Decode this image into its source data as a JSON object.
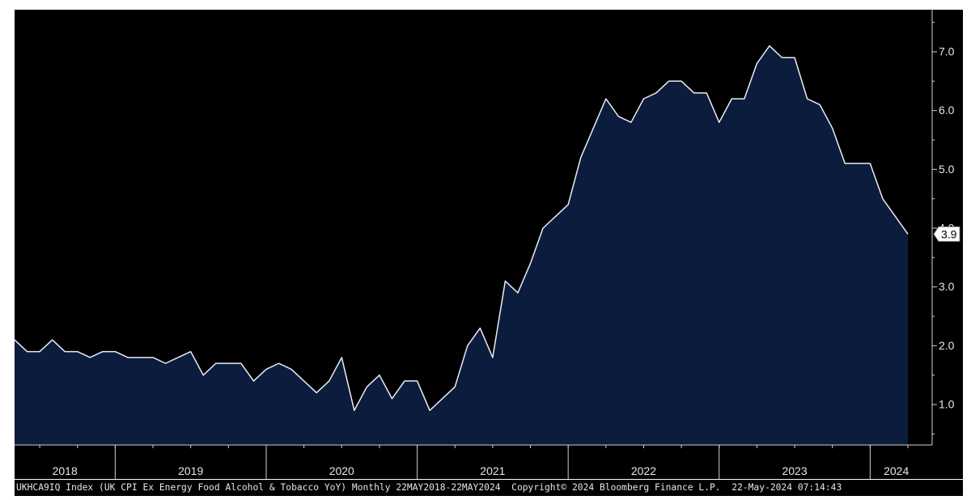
{
  "chart_data": {
    "type": "area",
    "x": [
      "2018-05",
      "2018-06",
      "2018-07",
      "2018-08",
      "2018-09",
      "2018-10",
      "2018-11",
      "2018-12",
      "2019-01",
      "2019-02",
      "2019-03",
      "2019-04",
      "2019-05",
      "2019-06",
      "2019-07",
      "2019-08",
      "2019-09",
      "2019-10",
      "2019-11",
      "2019-12",
      "2020-01",
      "2020-02",
      "2020-03",
      "2020-04",
      "2020-05",
      "2020-06",
      "2020-07",
      "2020-08",
      "2020-09",
      "2020-10",
      "2020-11",
      "2020-12",
      "2021-01",
      "2021-02",
      "2021-03",
      "2021-04",
      "2021-05",
      "2021-06",
      "2021-07",
      "2021-08",
      "2021-09",
      "2021-10",
      "2021-11",
      "2021-12",
      "2022-01",
      "2022-02",
      "2022-03",
      "2022-04",
      "2022-05",
      "2022-06",
      "2022-07",
      "2022-08",
      "2022-09",
      "2022-10",
      "2022-11",
      "2022-12",
      "2023-01",
      "2023-02",
      "2023-03",
      "2023-04",
      "2023-05",
      "2023-06",
      "2023-07",
      "2023-08",
      "2023-09",
      "2023-10",
      "2023-11",
      "2023-12",
      "2024-01",
      "2024-02",
      "2024-03",
      "2024-04"
    ],
    "series": [
      {
        "values": [
          2.1,
          1.9,
          1.9,
          2.1,
          1.9,
          1.9,
          1.8,
          1.9,
          1.9,
          1.8,
          1.8,
          1.8,
          1.7,
          1.8,
          1.9,
          1.5,
          1.7,
          1.7,
          1.7,
          1.4,
          1.6,
          1.7,
          1.6,
          1.4,
          1.2,
          1.4,
          1.8,
          0.9,
          1.3,
          1.5,
          1.1,
          1.4,
          1.4,
          0.9,
          1.1,
          1.3,
          2.0,
          2.3,
          1.8,
          3.1,
          2.9,
          3.4,
          4.0,
          4.2,
          4.4,
          5.2,
          5.7,
          6.2,
          5.9,
          5.8,
          6.2,
          6.3,
          6.5,
          6.5,
          6.3,
          6.3,
          5.8,
          6.2,
          6.2,
          6.8,
          7.1,
          6.9,
          6.9,
          6.2,
          6.1,
          5.7,
          5.1,
          5.1,
          5.1,
          4.5,
          4.2,
          3.9
        ]
      }
    ],
    "last_value_label": "3.9",
    "y_ticks": [
      "1.0",
      "2.0",
      "3.0",
      "4.0",
      "5.0",
      "6.0",
      "7.0"
    ],
    "year_labels": [
      "2018",
      "2019",
      "2020",
      "2021",
      "2022",
      "2023",
      "2024"
    ],
    "ylim": [
      0.3,
      7.6
    ],
    "grid": false,
    "y_axis_side": "right"
  },
  "colors": {
    "background": "#000000",
    "area_fill": "#0c1c3d",
    "line": "#e8eef8",
    "axis": "#d0d0d0",
    "text": "#e6e6e6",
    "label_box": "#ffffff",
    "label_text": "#000000"
  },
  "footer": {
    "ticker": "UKHCA9IQ Index",
    "description": "(UK CPI Ex Energy Food Alcohol & Tobacco YoY)",
    "range": "Monthly 22MAY2018-22MAY2024",
    "copyright": "Copyright© 2024 Bloomberg Finance L.P.",
    "timestamp": "22-May-2024 07:14:43"
  }
}
